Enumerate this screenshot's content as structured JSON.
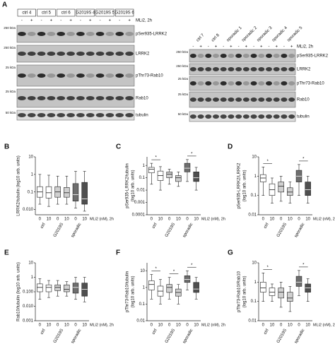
{
  "panel_label": "A",
  "blot_left": {
    "samples": [
      "ctrl 4",
      "ctrl 5",
      "ctrl 6",
      "G2019S 4",
      "G2019S 5",
      "G2019S 6"
    ],
    "treatment_label": "MLi2, 2h",
    "treatment": [
      "-",
      "+",
      "-",
      "+",
      "-",
      "+",
      "-",
      "+",
      "-",
      "+",
      "-",
      "+"
    ],
    "markers": [
      "250 kDa",
      "250 kDa",
      "25 kDa",
      "25 kDa",
      "50 kDa"
    ],
    "proteins": [
      "pSer935-LRRK2",
      "LRRK2",
      "pThr73-Rab10",
      "Rab10",
      "tubulin"
    ]
  },
  "blot_right": {
    "samples": [
      "ctrl 7",
      "ctrl 8",
      "sporadic 1",
      "sporadic 2",
      "sporadic 3",
      "sporadic 4",
      "sporadic 5"
    ],
    "treatment_label": "MLi2, 2h",
    "treatment": [
      "-",
      "+",
      "-",
      "+",
      "-",
      "+",
      "-",
      "+",
      "-",
      "+",
      "-",
      "+",
      "-",
      "+"
    ],
    "markers": [
      "250 kDa",
      "250 kDa",
      "25 kDa",
      "25 kDa",
      "50 kDa"
    ],
    "proteins": [
      "pSer935-LRRK2",
      "LRRK2",
      "pThr73-Rab10",
      "Rab10",
      "tubulin"
    ]
  },
  "chart_data": [
    {
      "type": "box",
      "panel": "B",
      "ylabel": [
        "LRRK2/tubulin (log10 arb. units)"
      ],
      "log_scale": true,
      "ylim": [
        0.005,
        10
      ],
      "yticks": [
        10,
        1,
        0.1,
        {
          "value": 0.01,
          "label": "0.010"
        }
      ],
      "categories": [
        "0",
        "10",
        "0",
        "10",
        "0",
        "10"
      ],
      "groups": [
        "ctrl",
        "G2019S",
        "sporadic"
      ],
      "xlabel": "MLi2 (nM), 2h",
      "colors": [
        "#ffffff",
        "#ffffff",
        "#d0d0d0",
        "#d0d0d0",
        "#6e6e6e",
        "#4f4f4f"
      ],
      "boxes": [
        {
          "min": 0.02,
          "q1": 0.05,
          "median": 0.1,
          "q3": 0.2,
          "max": 1
        },
        {
          "min": 0.015,
          "q1": 0.045,
          "median": 0.09,
          "q3": 0.2,
          "max": 0.9
        },
        {
          "min": 0.02,
          "q1": 0.05,
          "median": 0.1,
          "q3": 0.2,
          "max": 0.8
        },
        {
          "min": 0.02,
          "q1": 0.05,
          "median": 0.09,
          "q3": 0.18,
          "max": 0.8
        },
        {
          "min": 0.012,
          "q1": 0.03,
          "median": 0.07,
          "q3": 0.3,
          "max": 1.5
        },
        {
          "min": 0.008,
          "q1": 0.02,
          "median": 0.04,
          "q3": 0.35,
          "max": 1.5
        }
      ]
    },
    {
      "type": "box",
      "panel": "C",
      "ylabel": [
        "pSer935-LRRK2/tubulin",
        "(log10 arb. units)"
      ],
      "log_scale": true,
      "ylim": [
        0.0001,
        5
      ],
      "yticks": [
        1,
        0.1,
        0.01,
        0.001,
        0.0001
      ],
      "categories": [
        "0",
        "10",
        "0",
        "10",
        "0",
        "10"
      ],
      "groups": [
        "ctrl",
        "G2019S",
        "sporadic"
      ],
      "xlabel": "MLi2 (nM), 2h",
      "colors": [
        "#ffffff",
        "#ffffff",
        "#d0d0d0",
        "#d0d0d0",
        "#6e6e6e",
        "#4f4f4f"
      ],
      "significance": {
        "label": "*",
        "groups": [
          "ctrl",
          "sporadic"
        ]
      },
      "boxes": [
        {
          "min": 0.03,
          "q1": 0.25,
          "median": 0.5,
          "q3": 0.7,
          "max": 1.5
        },
        {
          "min": 0.01,
          "q1": 0.06,
          "median": 0.15,
          "q3": 0.35,
          "max": 0.8
        },
        {
          "min": 0.03,
          "q1": 0.1,
          "median": 0.2,
          "q3": 0.3,
          "max": 0.5
        },
        {
          "min": 0.02,
          "q1": 0.05,
          "median": 0.1,
          "q3": 0.15,
          "max": 0.3
        },
        {
          "min": 0.05,
          "q1": 0.3,
          "median": 0.6,
          "q3": 1.5,
          "max": 3
        },
        {
          "min": 0.01,
          "q1": 0.05,
          "median": 0.1,
          "q3": 0.3,
          "max": 0.7
        }
      ]
    },
    {
      "type": "box",
      "panel": "D",
      "ylabel": [
        "pSer935-LRRK2/LRRK2",
        "(log10 arb. units)"
      ],
      "log_scale": true,
      "ylim": [
        0.01,
        10
      ],
      "yticks": [
        10,
        1,
        0.1,
        0.01
      ],
      "categories": [
        "0",
        "10",
        "0",
        "10",
        "0",
        "10"
      ],
      "groups": [
        "ctrl",
        "G2019S",
        "sporadic"
      ],
      "xlabel": "MLi2 (nM), 2h",
      "colors": [
        "#ffffff",
        "#ffffff",
        "#d0d0d0",
        "#d0d0d0",
        "#6e6e6e",
        "#4f4f4f"
      ],
      "significance": {
        "label": "*",
        "groups": [
          "ctrl",
          "sporadic"
        ]
      },
      "boxes": [
        {
          "min": 0.1,
          "q1": 0.5,
          "median": 0.8,
          "q3": 1.2,
          "max": 3
        },
        {
          "min": 0.04,
          "q1": 0.1,
          "median": 0.2,
          "q3": 0.4,
          "max": 0.8
        },
        {
          "min": 0.05,
          "q1": 0.15,
          "median": 0.3,
          "q3": 0.5,
          "max": 1
        },
        {
          "min": 0.04,
          "q1": 0.1,
          "median": 0.15,
          "q3": 0.25,
          "max": 0.5
        },
        {
          "min": 0.1,
          "q1": 0.5,
          "median": 1,
          "q3": 2,
          "max": 4
        },
        {
          "min": 0.04,
          "q1": 0.1,
          "median": 0.2,
          "q3": 0.5,
          "max": 1
        }
      ]
    },
    {
      "type": "box",
      "panel": "E",
      "ylabel": [
        "Rab10/tubulin (log10 arb. units)"
      ],
      "log_scale": true,
      "ylim": [
        0.001,
        10
      ],
      "yticks": [
        10,
        1,
        {
          "value": 0.1,
          "label": "0.100"
        },
        {
          "value": 0.01,
          "label": "0.010"
        },
        0.001
      ],
      "categories": [
        "0",
        "10",
        "0",
        "10",
        "0",
        "10"
      ],
      "groups": [
        "ctrl",
        "G2019S",
        "sporadic"
      ],
      "xlabel": "MLi2 (nM), 2h",
      "colors": [
        "#ffffff",
        "#ffffff",
        "#d0d0d0",
        "#d0d0d0",
        "#6e6e6e",
        "#4f4f4f"
      ],
      "boxes": [
        {
          "min": 0.03,
          "q1": 0.1,
          "median": 0.2,
          "q3": 0.35,
          "max": 0.8
        },
        {
          "min": 0.04,
          "q1": 0.1,
          "median": 0.2,
          "q3": 0.3,
          "max": 0.6
        },
        {
          "min": 0.05,
          "q1": 0.12,
          "median": 0.2,
          "q3": 0.3,
          "max": 0.6
        },
        {
          "min": 0.05,
          "q1": 0.1,
          "median": 0.15,
          "q3": 0.3,
          "max": 0.5
        },
        {
          "min": 0.03,
          "q1": 0.08,
          "median": 0.2,
          "q3": 0.4,
          "max": 1
        },
        {
          "min": 0.02,
          "q1": 0.05,
          "median": 0.15,
          "q3": 0.4,
          "max": 1
        }
      ]
    },
    {
      "type": "box",
      "panel": "F",
      "ylabel": [
        "pThr73-Rab10/tubulin",
        "(log10 arb. units)"
      ],
      "log_scale": true,
      "ylim": [
        0.01,
        30
      ],
      "yticks": [
        10,
        1,
        0.1,
        0.01
      ],
      "categories": [
        "0",
        "10",
        "0",
        "10",
        "0",
        "10"
      ],
      "groups": [
        "ctrl",
        "G2019S",
        "sporadic"
      ],
      "xlabel": "MLi2 (nM), 2h",
      "colors": [
        "#ffffff",
        "#ffffff",
        "#d0d0d0",
        "#d0d0d0",
        "#6e6e6e",
        "#4f4f4f"
      ],
      "significance": {
        "label": "*",
        "groups": [
          "ctrl",
          "G2019S",
          "sporadic"
        ]
      },
      "boxes": [
        {
          "min": 0.2,
          "q1": 0.7,
          "median": 1.5,
          "q3": 2.5,
          "max": 6
        },
        {
          "min": 0.1,
          "q1": 0.3,
          "median": 0.6,
          "q3": 1.2,
          "max": 3
        },
        {
          "min": 0.2,
          "q1": 0.5,
          "median": 1,
          "q3": 1.5,
          "max": 4
        },
        {
          "min": 0.1,
          "q1": 0.3,
          "median": 0.5,
          "q3": 0.8,
          "max": 1.5
        },
        {
          "min": 0.7,
          "q1": 2,
          "median": 3,
          "q3": 5,
          "max": 10
        },
        {
          "min": 0.2,
          "q1": 0.5,
          "median": 0.8,
          "q3": 2,
          "max": 4
        }
      ]
    },
    {
      "type": "box",
      "panel": "G",
      "ylabel": [
        "pThr73-Rab10/Rab10",
        "(log10 arb. units)"
      ],
      "log_scale": true,
      "ylim": [
        0.01,
        10
      ],
      "yticks": [
        10,
        1,
        0.1,
        0.01
      ],
      "categories": [
        "0",
        "10",
        "0",
        "10",
        "0",
        "10"
      ],
      "groups": [
        "ctrl",
        "G2019S",
        "sporadic"
      ],
      "xlabel": "MLi2 (nM), 2h",
      "colors": [
        "#ffffff",
        "#ffffff",
        "#d0d0d0",
        "#d0d0d0",
        "#6e6e6e",
        "#4f4f4f"
      ],
      "significance": {
        "label": "*",
        "groups": [
          "ctrl",
          "sporadic"
        ]
      },
      "boxes": [
        {
          "min": 0.1,
          "q1": 0.3,
          "median": 0.5,
          "q3": 1,
          "max": 3
        },
        {
          "min": 0.1,
          "q1": 0.2,
          "median": 0.3,
          "q3": 0.5,
          "max": 0.8
        },
        {
          "min": 0.05,
          "q1": 0.15,
          "median": 0.3,
          "q3": 0.5,
          "max": 1
        },
        {
          "min": 0.03,
          "q1": 0.1,
          "median": 0.15,
          "q3": 0.3,
          "max": 0.6
        },
        {
          "min": 0.2,
          "q1": 0.6,
          "median": 1,
          "q3": 2,
          "max": 4
        },
        {
          "min": 0.1,
          "q1": 0.3,
          "median": 0.5,
          "q3": 0.8,
          "max": 1.5
        }
      ]
    }
  ]
}
